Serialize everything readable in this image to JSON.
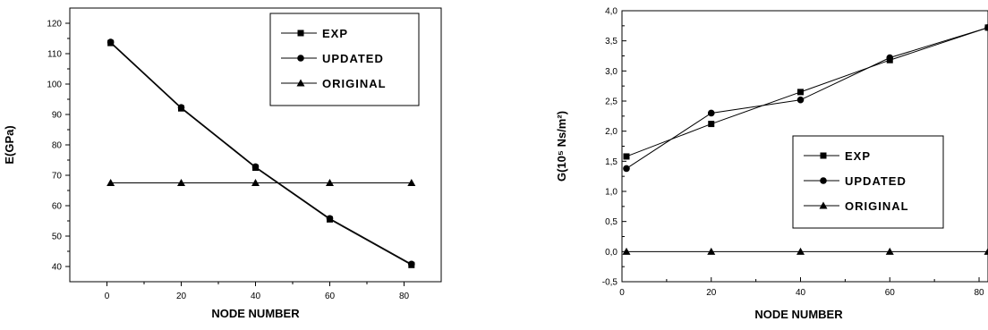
{
  "chart_data": [
    {
      "type": "line",
      "xlabel": "NODE NUMBER",
      "ylabel": "E(GPa)",
      "xlim": [
        -10,
        90
      ],
      "ylim": [
        35,
        125
      ],
      "xticks": [
        0,
        20,
        40,
        60,
        80
      ],
      "yticks": [
        40,
        50,
        60,
        70,
        80,
        90,
        100,
        110,
        120
      ],
      "ytick_labels": [
        "40",
        "50",
        "60",
        "70",
        "80",
        "90",
        "100",
        "110",
        "120"
      ],
      "legend_position": "top-right",
      "series": [
        {
          "name": "EXP",
          "marker": "square",
          "x": [
            1,
            20,
            40,
            60,
            82
          ],
          "y": [
            113.5,
            92.0,
            72.5,
            55.5,
            40.5
          ]
        },
        {
          "name": "UPDATED",
          "marker": "circle",
          "x": [
            1,
            20,
            40,
            60,
            82
          ],
          "y": [
            113.8,
            92.3,
            72.8,
            55.8,
            40.8
          ]
        },
        {
          "name": "ORIGINAL",
          "marker": "triangle",
          "x": [
            1,
            20,
            40,
            60,
            82
          ],
          "y": [
            67.5,
            67.5,
            67.5,
            67.5,
            67.5
          ]
        }
      ]
    },
    {
      "type": "line",
      "xlabel": "NODE NUMBER",
      "ylabel": "G(10⁵ Ns/m²)",
      "xlim": [
        0,
        82
      ],
      "ylim": [
        -0.5,
        4.0
      ],
      "xticks": [
        0,
        20,
        40,
        60,
        80
      ],
      "xtick_labels": [
        "0",
        "20",
        "40",
        "60",
        "80"
      ],
      "yticks": [
        -0.5,
        0.0,
        0.5,
        1.0,
        1.5,
        2.0,
        2.5,
        3.0,
        3.5,
        4.0
      ],
      "ytick_labels": [
        "-0,5",
        "0,0",
        "0,5",
        "1,0",
        "1,5",
        "2,0",
        "2,5",
        "3,0",
        "3,5",
        "4,0"
      ],
      "legend_position": "center-right",
      "series": [
        {
          "name": "EXP",
          "marker": "square",
          "x": [
            1,
            20,
            40,
            60,
            82
          ],
          "y": [
            1.58,
            2.12,
            2.65,
            3.18,
            3.72
          ]
        },
        {
          "name": "UPDATED",
          "marker": "circle",
          "x": [
            1,
            20,
            40,
            60,
            82
          ],
          "y": [
            1.38,
            2.3,
            2.52,
            3.22,
            3.72
          ]
        },
        {
          "name": "ORIGINAL",
          "marker": "triangle",
          "x": [
            1,
            20,
            40,
            60,
            82
          ],
          "y": [
            0.0,
            0.0,
            0.0,
            0.0,
            0.0
          ]
        }
      ]
    }
  ]
}
